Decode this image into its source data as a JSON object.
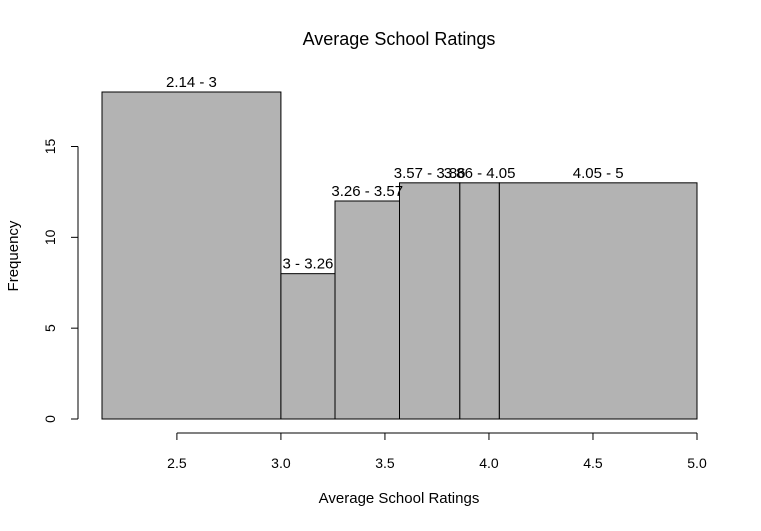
{
  "chart_data": {
    "type": "bar",
    "title": "Average School Ratings",
    "xlabel": "Average School Ratings",
    "ylabel": "Frequency",
    "xlim": [
      2.14,
      5.0
    ],
    "ylim": [
      0,
      18
    ],
    "x_ticks": [
      {
        "value": 2.5,
        "label": "2.5"
      },
      {
        "value": 3.0,
        "label": "3.0"
      },
      {
        "value": 3.5,
        "label": "3.5"
      },
      {
        "value": 4.0,
        "label": "4.0"
      },
      {
        "value": 4.5,
        "label": "4.5"
      },
      {
        "value": 5.0,
        "label": "5.0"
      }
    ],
    "y_ticks": [
      {
        "value": 0,
        "label": "0"
      },
      {
        "value": 5,
        "label": "5"
      },
      {
        "value": 10,
        "label": "10"
      },
      {
        "value": 15,
        "label": "15"
      }
    ],
    "bins": [
      {
        "start": 2.14,
        "end": 3.0,
        "count": 18,
        "label": "2.14 - 3"
      },
      {
        "start": 3.0,
        "end": 3.26,
        "count": 8,
        "label": "3 - 3.26"
      },
      {
        "start": 3.26,
        "end": 3.57,
        "count": 12,
        "label": "3.26 - 3.57"
      },
      {
        "start": 3.57,
        "end": 3.86,
        "count": 13,
        "label": "3.57 - 3.86"
      },
      {
        "start": 3.86,
        "end": 4.05,
        "count": 13,
        "label": "3.86 - 4.05"
      },
      {
        "start": 4.05,
        "end": 5.0,
        "count": 13,
        "label": "4.05 - 5"
      }
    ],
    "grid": false,
    "colors": {
      "bar_fill": "#b3b3b3",
      "bar_stroke": "#000000"
    }
  }
}
